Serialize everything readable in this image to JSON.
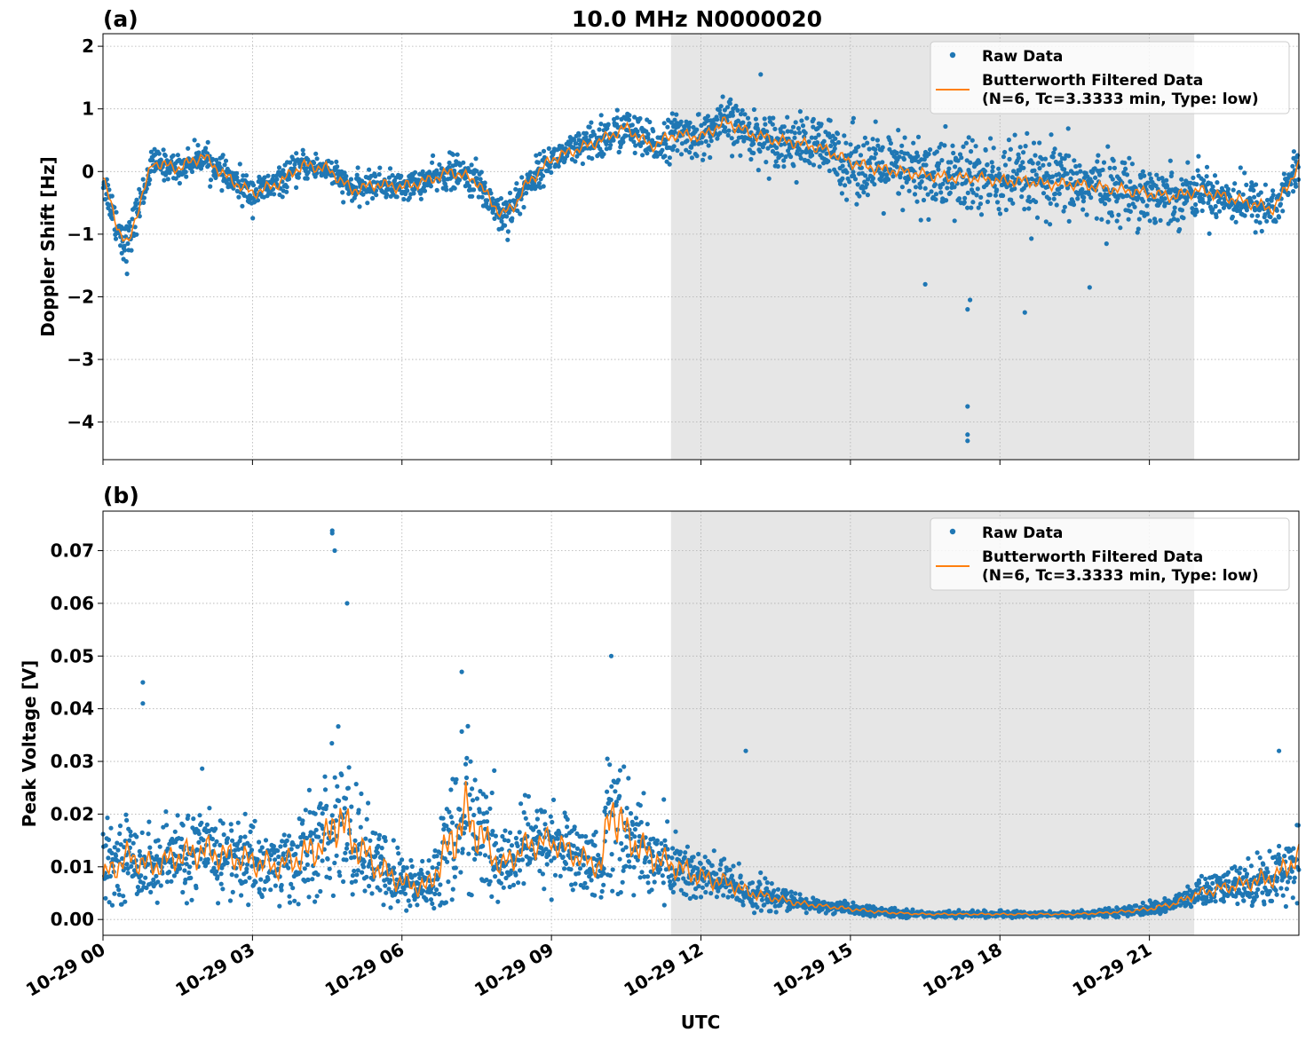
{
  "figure": {
    "title": "10.0 MHz N0000020",
    "xlabel": "UTC",
    "x_ticks": [
      "10-29 00",
      "10-29 03",
      "10-29 06",
      "10-29 09",
      "10-29 12",
      "10-29 15",
      "10-29 18",
      "10-29 21"
    ],
    "shade_label": "",
    "colors": {
      "raw": "#1f77b4",
      "filtered": "#ff7f0e",
      "shade": "#e6e6e6",
      "grid": "#b0b0b0"
    }
  },
  "legend": {
    "raw": "Raw Data",
    "filtered_line1": "Butterworth Filtered Data",
    "filtered_line2": "(N=6, Tc=3.3333 min, Type: low)"
  },
  "chart_data": [
    {
      "type": "scatter",
      "panel_label": "(a)",
      "ylabel": "Doppler Shift [Hz]",
      "xlim_hours": [
        0,
        24
      ],
      "ylim": [
        -4.6,
        2.2
      ],
      "y_ticks": [
        "2",
        "1",
        "0",
        "−1",
        "−2",
        "−3",
        "−4"
      ],
      "y_tick_values": [
        2,
        1,
        0,
        -1,
        -2,
        -3,
        -4
      ],
      "shaded_interval_hours": [
        11.4,
        21.9
      ],
      "grid": true,
      "legend_position": "upper-right",
      "series": [
        {
          "name": "Raw Data",
          "style": "points",
          "x_hours": [
            0,
            0.3,
            0.5,
            0.7,
            1,
            1.5,
            2,
            2.5,
            3,
            3.5,
            4,
            4.5,
            5,
            5.5,
            6,
            6.5,
            7,
            7.5,
            8,
            8.3,
            8.5,
            9,
            9.5,
            10,
            10.5,
            11,
            11.5,
            12,
            12.5,
            13,
            13.5,
            14,
            14.5,
            15,
            15.5,
            16,
            16.5,
            17,
            17.5,
            18,
            18.5,
            19,
            19.5,
            20,
            20.5,
            21,
            21.5,
            22,
            22.5,
            23,
            23.5,
            24
          ],
          "center": [
            -0.1,
            -0.9,
            -1.2,
            -0.6,
            0.15,
            0.05,
            0.25,
            -0.1,
            -0.35,
            -0.2,
            0.1,
            0.05,
            -0.3,
            -0.2,
            -0.25,
            -0.15,
            0.0,
            -0.15,
            -0.7,
            -0.5,
            -0.2,
            0.2,
            0.35,
            0.5,
            0.7,
            0.4,
            0.6,
            0.55,
            0.8,
            0.6,
            0.5,
            0.45,
            0.35,
            0.15,
            0.05,
            0.0,
            -0.05,
            -0.1,
            -0.1,
            -0.15,
            -0.15,
            -0.2,
            -0.2,
            -0.25,
            -0.3,
            -0.35,
            -0.4,
            -0.3,
            -0.4,
            -0.5,
            -0.6,
            0.1
          ],
          "spread": [
            0.25,
            0.3,
            0.35,
            0.25,
            0.2,
            0.2,
            0.2,
            0.2,
            0.25,
            0.2,
            0.2,
            0.2,
            0.2,
            0.2,
            0.2,
            0.2,
            0.25,
            0.25,
            0.3,
            0.3,
            0.25,
            0.2,
            0.25,
            0.3,
            0.3,
            0.3,
            0.3,
            0.3,
            0.35,
            0.35,
            0.35,
            0.4,
            0.45,
            0.5,
            0.5,
            0.55,
            0.55,
            0.6,
            0.6,
            0.55,
            0.55,
            0.55,
            0.5,
            0.5,
            0.45,
            0.45,
            0.4,
            0.35,
            0.35,
            0.35,
            0.35,
            0.3
          ],
          "outliers": [
            [
              17.35,
              -4.3
            ],
            [
              17.35,
              -4.2
            ],
            [
              17.35,
              -3.75
            ],
            [
              17.35,
              -2.2
            ],
            [
              17.4,
              -2.05
            ],
            [
              18.5,
              -2.25
            ],
            [
              16.5,
              -1.8
            ],
            [
              19.8,
              -1.85
            ],
            [
              10.0,
              0.9
            ],
            [
              13.2,
              1.55
            ]
          ]
        },
        {
          "name": "Butterworth Filtered Data",
          "style": "line",
          "x_hours": [
            0,
            0.3,
            0.5,
            0.7,
            1,
            1.5,
            2,
            2.5,
            3,
            3.5,
            4,
            4.5,
            5,
            5.5,
            6,
            6.5,
            7,
            7.5,
            8,
            8.3,
            8.5,
            9,
            9.5,
            10,
            10.5,
            11,
            11.5,
            12,
            12.5,
            13,
            13.5,
            14,
            14.5,
            15,
            15.5,
            16,
            16.5,
            17,
            17.5,
            18,
            18.5,
            19,
            19.5,
            20,
            20.5,
            21,
            21.5,
            22,
            22.5,
            23,
            23.5,
            24
          ],
          "values": [
            -0.1,
            -0.9,
            -1.2,
            -0.6,
            0.15,
            0.05,
            0.25,
            -0.1,
            -0.35,
            -0.2,
            0.1,
            0.05,
            -0.3,
            -0.2,
            -0.25,
            -0.15,
            0.0,
            -0.15,
            -0.7,
            -0.5,
            -0.2,
            0.2,
            0.35,
            0.5,
            0.7,
            0.4,
            0.6,
            0.55,
            0.8,
            0.6,
            0.5,
            0.45,
            0.35,
            0.15,
            0.05,
            0.0,
            -0.05,
            -0.1,
            -0.1,
            -0.15,
            -0.15,
            -0.2,
            -0.2,
            -0.25,
            -0.3,
            -0.35,
            -0.4,
            -0.3,
            -0.4,
            -0.5,
            -0.6,
            0.1
          ]
        }
      ]
    },
    {
      "type": "scatter",
      "panel_label": "(b)",
      "ylabel": "Peak Voltage [V]",
      "xlim_hours": [
        0,
        24
      ],
      "ylim": [
        -0.003,
        0.0775
      ],
      "y_ticks": [
        "0.07",
        "0.06",
        "0.05",
        "0.04",
        "0.03",
        "0.02",
        "0.01",
        "0.00"
      ],
      "y_tick_values": [
        0.07,
        0.06,
        0.05,
        0.04,
        0.03,
        0.02,
        0.01,
        0.0
      ],
      "shaded_interval_hours": [
        11.4,
        21.9
      ],
      "grid": true,
      "legend_position": "upper-right",
      "series": [
        {
          "name": "Raw Data",
          "style": "points",
          "x_hours": [
            0,
            0.5,
            1,
            1.5,
            2,
            2.5,
            3,
            3.5,
            4,
            4.5,
            4.7,
            5,
            5.5,
            6,
            6.5,
            7,
            7.3,
            7.5,
            8,
            8.5,
            9,
            9.5,
            10,
            10.2,
            10.5,
            11,
            11.5,
            12,
            12.5,
            13,
            13.5,
            14,
            14.5,
            15,
            15.5,
            16,
            16.5,
            17,
            17.5,
            18,
            18.5,
            19,
            19.5,
            20,
            20.5,
            21,
            21.5,
            22,
            22.5,
            23,
            23.5,
            24
          ],
          "center": [
            0.01,
            0.012,
            0.01,
            0.012,
            0.013,
            0.012,
            0.011,
            0.01,
            0.012,
            0.015,
            0.02,
            0.015,
            0.01,
            0.007,
            0.006,
            0.015,
            0.02,
            0.017,
            0.01,
            0.014,
            0.015,
            0.012,
            0.01,
            0.022,
            0.016,
            0.012,
            0.01,
            0.008,
            0.007,
            0.005,
            0.004,
            0.003,
            0.0025,
            0.002,
            0.0015,
            0.0012,
            0.001,
            0.001,
            0.001,
            0.001,
            0.001,
            0.001,
            0.001,
            0.0012,
            0.0015,
            0.002,
            0.003,
            0.005,
            0.006,
            0.007,
            0.008,
            0.012
          ],
          "spread": [
            0.006,
            0.007,
            0.006,
            0.007,
            0.008,
            0.007,
            0.007,
            0.006,
            0.008,
            0.01,
            0.015,
            0.01,
            0.007,
            0.005,
            0.005,
            0.012,
            0.015,
            0.012,
            0.006,
            0.007,
            0.007,
            0.006,
            0.006,
            0.015,
            0.01,
            0.007,
            0.006,
            0.005,
            0.004,
            0.003,
            0.002,
            0.0015,
            0.001,
            0.001,
            0.0008,
            0.0006,
            0.0005,
            0.0005,
            0.0005,
            0.0005,
            0.0005,
            0.0005,
            0.0005,
            0.0006,
            0.0008,
            0.001,
            0.0015,
            0.0025,
            0.003,
            0.004,
            0.005,
            0.006
          ],
          "outliers": [
            [
              4.6,
              0.0738
            ],
            [
              4.6,
              0.0733
            ],
            [
              4.65,
              0.07
            ],
            [
              4.9,
              0.06
            ],
            [
              0.8,
              0.045
            ],
            [
              0.8,
              0.041
            ],
            [
              7.2,
              0.047
            ],
            [
              10.2,
              0.05
            ],
            [
              12.9,
              0.032
            ],
            [
              23.6,
              0.032
            ]
          ]
        },
        {
          "name": "Butterworth Filtered Data",
          "style": "line",
          "x_hours": [
            0,
            0.5,
            1,
            1.5,
            2,
            2.5,
            3,
            3.5,
            4,
            4.5,
            4.7,
            5,
            5.5,
            6,
            6.5,
            7,
            7.3,
            7.5,
            8,
            8.5,
            9,
            9.5,
            10,
            10.2,
            10.5,
            11,
            11.5,
            12,
            12.5,
            13,
            13.5,
            14,
            14.5,
            15,
            15.5,
            16,
            16.5,
            17,
            17.5,
            18,
            18.5,
            19,
            19.5,
            20,
            20.5,
            21,
            21.5,
            22,
            22.5,
            23,
            23.5,
            24
          ],
          "values": [
            0.008,
            0.012,
            0.01,
            0.012,
            0.013,
            0.012,
            0.011,
            0.01,
            0.012,
            0.015,
            0.02,
            0.015,
            0.01,
            0.007,
            0.006,
            0.015,
            0.02,
            0.017,
            0.01,
            0.014,
            0.015,
            0.012,
            0.01,
            0.022,
            0.016,
            0.012,
            0.01,
            0.008,
            0.007,
            0.005,
            0.004,
            0.003,
            0.0025,
            0.002,
            0.0015,
            0.0012,
            0.001,
            0.001,
            0.001,
            0.001,
            0.001,
            0.001,
            0.001,
            0.0012,
            0.0015,
            0.002,
            0.003,
            0.005,
            0.006,
            0.007,
            0.008,
            0.012
          ]
        }
      ]
    }
  ]
}
